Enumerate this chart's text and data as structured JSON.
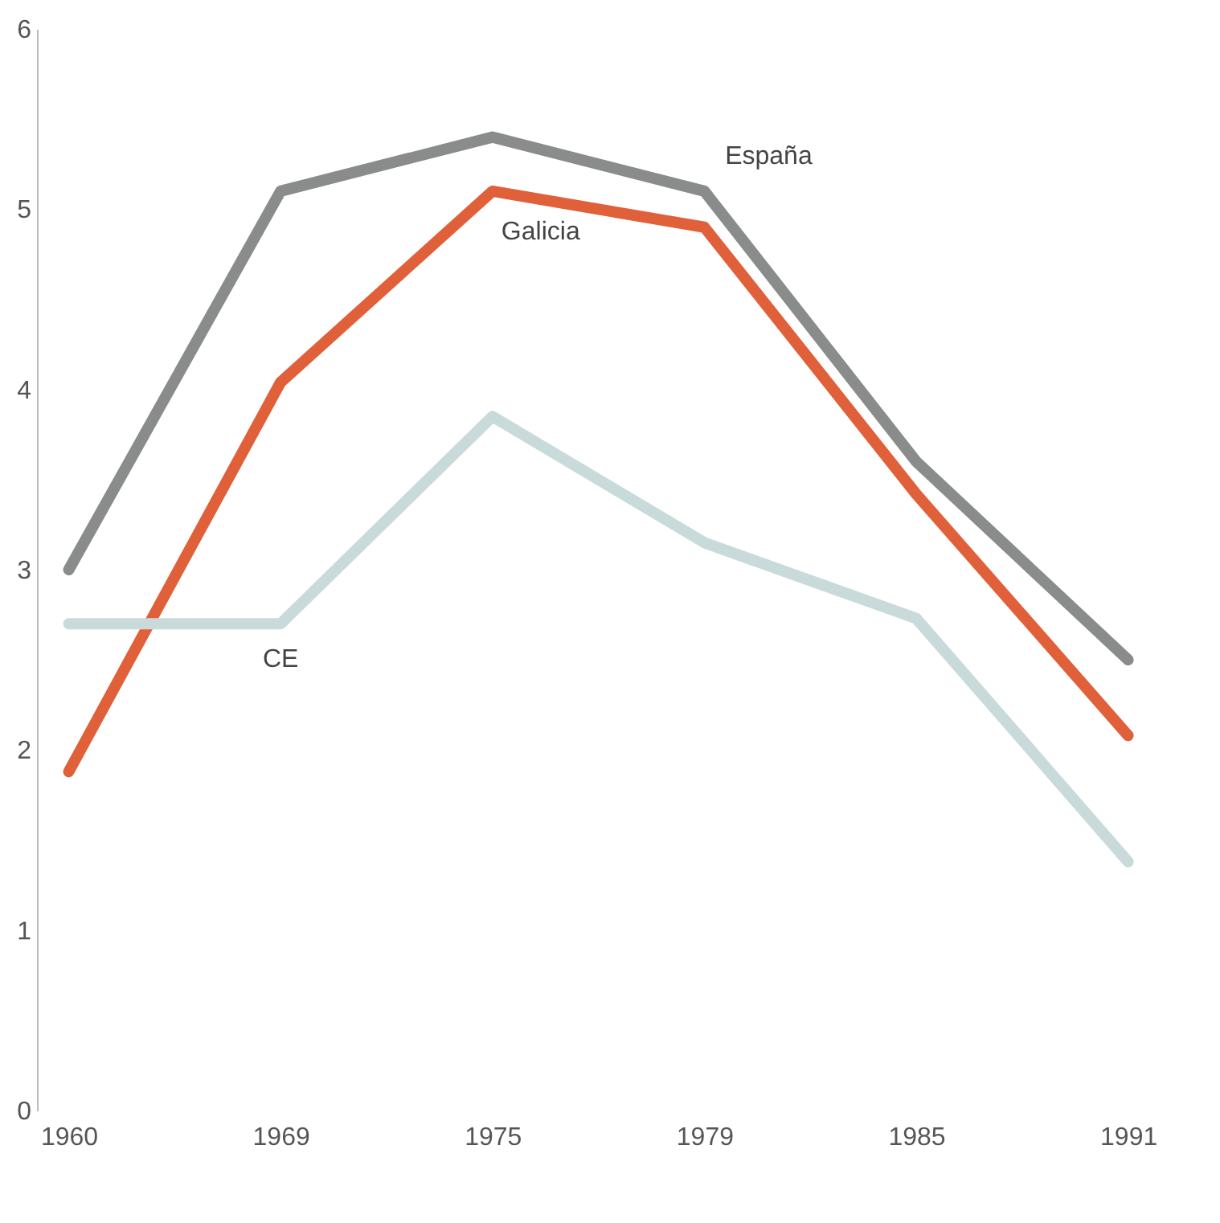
{
  "chart_data": {
    "type": "line",
    "categories": [
      "1960",
      "1969",
      "1975",
      "1979",
      "1985",
      "1991"
    ],
    "series": [
      {
        "name": "España",
        "color": "#8a8c8c",
        "values": [
          3.0,
          5.1,
          5.4,
          5.1,
          3.6,
          2.5
        ]
      },
      {
        "name": "Galicia",
        "color": "#e0603a",
        "values": [
          1.88,
          4.04,
          5.1,
          4.9,
          3.42,
          2.08
        ]
      },
      {
        "name": "CE",
        "color": "#c9dada",
        "values": [
          2.7,
          2.7,
          3.85,
          3.15,
          2.73,
          1.38
        ]
      }
    ],
    "ylim": [
      0,
      6
    ],
    "yticks": [
      0,
      1,
      2,
      3,
      4,
      5,
      6
    ],
    "grid": false,
    "marker": "none",
    "line_style": "solid"
  }
}
